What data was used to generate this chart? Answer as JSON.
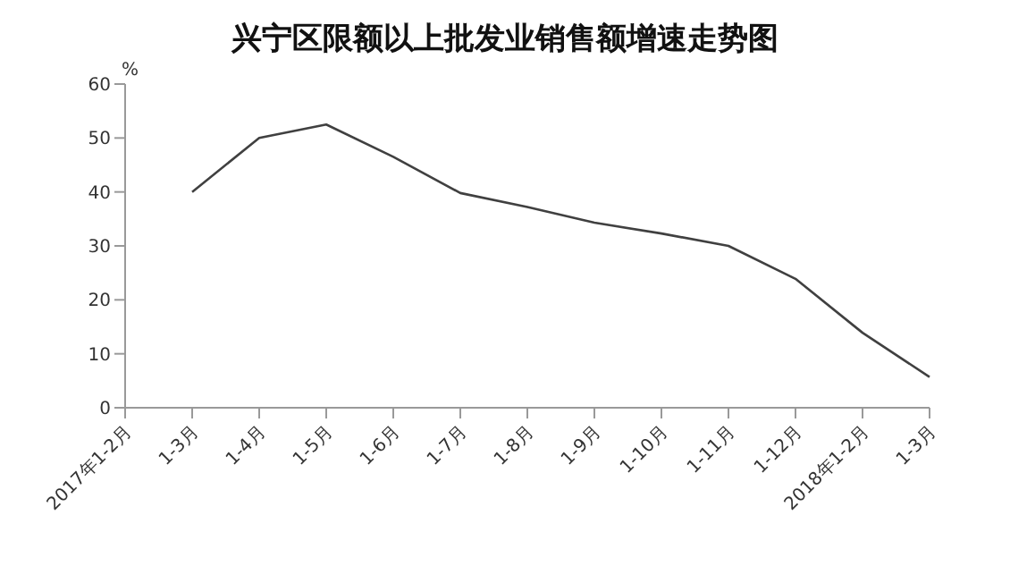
{
  "chart_data": {
    "type": "line",
    "title": "兴宁区限额以上批发业销售额增速走势图",
    "ylabel": "%",
    "categories": [
      "2017年1-2月",
      "1-3月",
      "1-4月",
      "1-5月",
      "1-6月",
      "1-7月",
      "1-8月",
      "1-9月",
      "1-10月",
      "1-11月",
      "1-12月",
      "2018年1-2月",
      "1-3月"
    ],
    "series": [
      {
        "color": "#404040",
        "values": [
          null,
          40,
          50,
          52.5,
          46.5,
          39.8,
          37.2,
          34.3,
          32.3,
          30,
          23.9,
          13.9,
          5.7
        ]
      }
    ],
    "ylim": [
      0,
      60
    ],
    "yticks": [
      0,
      10,
      20,
      30,
      40,
      50,
      60
    ],
    "grid": false,
    "legend": false,
    "marker": "none",
    "line_style": "solid"
  }
}
